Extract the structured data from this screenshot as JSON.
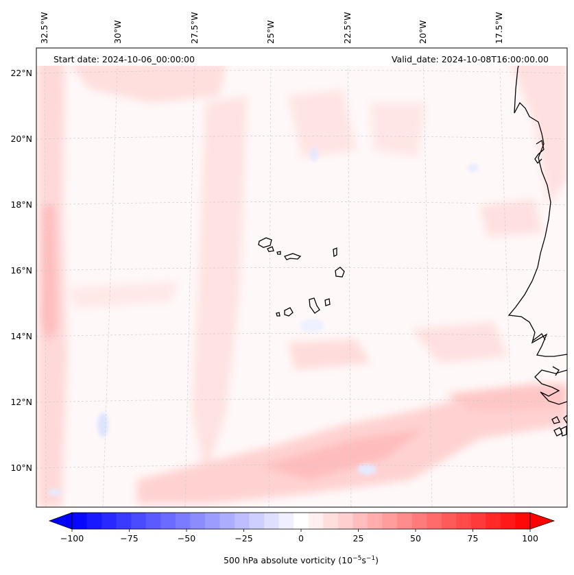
{
  "map": {
    "start_date_label": "Start date: 2024-10-06_00:00:00",
    "valid_date_label": "Valid_date: 2024-10-08T16:00:00.00",
    "longitude_labels": [
      "32.5°W",
      "30°W",
      "27.5°W",
      "25°W",
      "22.5°W",
      "20°W",
      "17.5°W"
    ],
    "latitude_labels": [
      "22°N",
      "20°N",
      "18°N",
      "16°N",
      "14°N",
      "12°N",
      "10°N"
    ],
    "field": "500 hPa absolute vorticity",
    "colors": {
      "positive_max": "#ff0000",
      "negative_max": "#0000ff",
      "neutral": "#ffffff",
      "coastline": "#000000",
      "gridline": "#cccccc"
    }
  },
  "colorbar": {
    "ticks": [
      "−100",
      "−75",
      "−50",
      "−25",
      "0",
      "25",
      "50",
      "75",
      "100"
    ],
    "tick_values": [
      -100,
      -75,
      -50,
      -25,
      0,
      25,
      50,
      75,
      100
    ],
    "range": [
      -100,
      100
    ],
    "levels": 31,
    "label_main": "500 hPa absolute vorticity (10",
    "label_exp1": "−5",
    "label_mid": "s",
    "label_exp2": "−1",
    "label_end": ")"
  }
}
